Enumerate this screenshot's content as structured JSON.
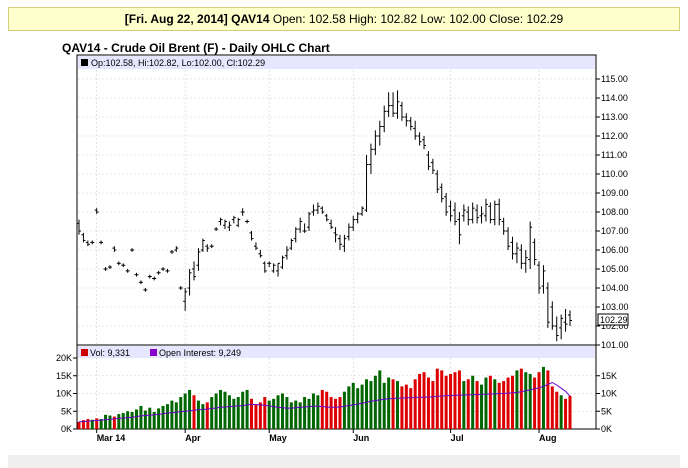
{
  "info_bar": {
    "date": "[Fri. Aug 22, 2014]",
    "symbol": "QAV14",
    "open_label": "Open:",
    "open": "102.58",
    "high_label": "High:",
    "high": "102.82",
    "low_label": "Low:",
    "low": "102.00",
    "close_label": "Close:",
    "close": "102.29"
  },
  "title": "QAV14 - Crude Oil Brent (F) - Daily OHLC Chart",
  "price_legend": "Op:102.58, Hi:102.82, Lo:102.00, Cl:102.29",
  "last_price_tag": "102.29",
  "volume_legend": {
    "vol": "Vol: 9,331",
    "oi": "Open Interest: 9,249"
  },
  "colors": {
    "up": "#006600",
    "down": "#dd0000",
    "oi_line": "#6600cc",
    "vol_swatch": "#cc0000",
    "oi_swatch": "#8800cc",
    "header_band": "#e6e6ff"
  },
  "chart_data": [
    {
      "type": "ohlc",
      "y_ticks": [
        "101.00",
        "102.00",
        "103.00",
        "104.00",
        "105.00",
        "106.00",
        "107.00",
        "108.00",
        "109.00",
        "110.00",
        "111.00",
        "112.00",
        "113.00",
        "114.00",
        "115.00"
      ],
      "ylim": [
        101,
        115
      ],
      "x_labels": [
        "Mar 14",
        "Apr",
        "May",
        "Jun",
        "Jul",
        "Aug"
      ],
      "bars": [
        {
          "o": 107.4,
          "h": 107.6,
          "l": 106.8,
          "c": 107.0
        },
        {
          "o": 106.8,
          "h": 106.9,
          "l": 106.4,
          "c": 106.5
        },
        {
          "o": 106.4,
          "h": 106.5,
          "l": 106.2,
          "c": 106.3
        },
        {
          "o": 106.4,
          "h": 106.5,
          "l": 106.3,
          "c": 106.4
        },
        {
          "o": 108.1,
          "h": 108.2,
          "l": 107.9,
          "c": 108.0
        },
        {
          "o": 106.4,
          "h": 106.5,
          "l": 106.3,
          "c": 106.4
        },
        {
          "o": 105.0,
          "h": 105.1,
          "l": 104.9,
          "c": 105.0
        },
        {
          "o": 105.1,
          "h": 105.2,
          "l": 105.0,
          "c": 105.1
        },
        {
          "o": 106.1,
          "h": 106.2,
          "l": 105.9,
          "c": 106.0
        },
        {
          "o": 105.3,
          "h": 105.4,
          "l": 105.2,
          "c": 105.3
        },
        {
          "o": 105.2,
          "h": 105.3,
          "l": 105.1,
          "c": 105.2
        },
        {
          "o": 104.9,
          "h": 105.0,
          "l": 104.8,
          "c": 104.9
        },
        {
          "o": 106.0,
          "h": 106.1,
          "l": 105.9,
          "c": 106.0
        },
        {
          "o": 104.7,
          "h": 104.8,
          "l": 104.6,
          "c": 104.7
        },
        {
          "o": 104.3,
          "h": 104.4,
          "l": 104.2,
          "c": 104.3
        },
        {
          "o": 103.9,
          "h": 104.0,
          "l": 103.8,
          "c": 103.9
        },
        {
          "o": 104.6,
          "h": 104.7,
          "l": 104.5,
          "c": 104.6
        },
        {
          "o": 104.5,
          "h": 104.6,
          "l": 104.4,
          "c": 104.5
        },
        {
          "o": 104.8,
          "h": 104.9,
          "l": 104.7,
          "c": 104.8
        },
        {
          "o": 105.0,
          "h": 105.1,
          "l": 104.9,
          "c": 105.0
        },
        {
          "o": 104.9,
          "h": 105.0,
          "l": 104.8,
          "c": 104.9
        },
        {
          "o": 105.9,
          "h": 106.0,
          "l": 105.8,
          "c": 105.9
        },
        {
          "o": 106.0,
          "h": 106.2,
          "l": 105.9,
          "c": 106.1
        },
        {
          "o": 104.0,
          "h": 104.1,
          "l": 103.9,
          "c": 104.0
        },
        {
          "o": 103.3,
          "h": 104.0,
          "l": 102.8,
          "c": 103.8
        },
        {
          "o": 104.0,
          "h": 105.0,
          "l": 103.6,
          "c": 104.8
        },
        {
          "o": 105.0,
          "h": 105.4,
          "l": 104.4,
          "c": 104.6
        },
        {
          "o": 105.2,
          "h": 106.1,
          "l": 104.9,
          "c": 105.9
        },
        {
          "o": 106.0,
          "h": 106.6,
          "l": 105.9,
          "c": 106.5
        },
        {
          "o": 106.2,
          "h": 106.3,
          "l": 105.9,
          "c": 106.1
        },
        {
          "o": 106.2,
          "h": 106.3,
          "l": 106.1,
          "c": 106.2
        },
        {
          "o": 107.1,
          "h": 107.2,
          "l": 107.0,
          "c": 107.1
        },
        {
          "o": 107.5,
          "h": 107.7,
          "l": 107.3,
          "c": 107.6
        },
        {
          "o": 107.3,
          "h": 107.6,
          "l": 107.1,
          "c": 107.5
        },
        {
          "o": 107.2,
          "h": 107.5,
          "l": 107.0,
          "c": 107.3
        },
        {
          "o": 107.6,
          "h": 107.8,
          "l": 107.4,
          "c": 107.7
        },
        {
          "o": 107.3,
          "h": 107.7,
          "l": 107.2,
          "c": 107.6
        },
        {
          "o": 108.0,
          "h": 108.2,
          "l": 107.8,
          "c": 108.0
        },
        {
          "o": 107.5,
          "h": 107.6,
          "l": 107.4,
          "c": 107.5
        },
        {
          "o": 106.9,
          "h": 107.0,
          "l": 106.5,
          "c": 106.6
        },
        {
          "o": 106.2,
          "h": 106.4,
          "l": 106.0,
          "c": 106.1
        },
        {
          "o": 105.8,
          "h": 106.0,
          "l": 105.6,
          "c": 105.7
        },
        {
          "o": 105.3,
          "h": 105.4,
          "l": 104.8,
          "c": 104.9
        },
        {
          "o": 105.3,
          "h": 105.4,
          "l": 105.1,
          "c": 105.3
        },
        {
          "o": 104.9,
          "h": 105.3,
          "l": 104.8,
          "c": 105.2
        },
        {
          "o": 104.9,
          "h": 105.3,
          "l": 104.6,
          "c": 105.3
        },
        {
          "o": 105.1,
          "h": 105.7,
          "l": 105.0,
          "c": 105.6
        },
        {
          "o": 105.7,
          "h": 106.2,
          "l": 105.5,
          "c": 106.0
        },
        {
          "o": 106.1,
          "h": 106.6,
          "l": 106.0,
          "c": 106.5
        },
        {
          "o": 106.6,
          "h": 107.2,
          "l": 106.4,
          "c": 107.1
        },
        {
          "o": 107.1,
          "h": 107.7,
          "l": 106.9,
          "c": 107.5
        },
        {
          "o": 107.0,
          "h": 107.4,
          "l": 106.9,
          "c": 107.0
        },
        {
          "o": 107.2,
          "h": 108.0,
          "l": 107.0,
          "c": 107.9
        },
        {
          "o": 108.0,
          "h": 108.4,
          "l": 107.8,
          "c": 108.1
        },
        {
          "o": 108.1,
          "h": 108.5,
          "l": 107.9,
          "c": 108.3
        },
        {
          "o": 108.2,
          "h": 108.3,
          "l": 107.9,
          "c": 108.0
        },
        {
          "o": 107.8,
          "h": 107.9,
          "l": 107.5,
          "c": 107.6
        },
        {
          "o": 107.4,
          "h": 107.6,
          "l": 107.1,
          "c": 107.2
        },
        {
          "o": 106.9,
          "h": 107.2,
          "l": 106.4,
          "c": 106.8
        },
        {
          "o": 106.6,
          "h": 106.8,
          "l": 106.0,
          "c": 106.3
        },
        {
          "o": 106.2,
          "h": 106.8,
          "l": 105.9,
          "c": 106.6
        },
        {
          "o": 106.7,
          "h": 107.4,
          "l": 106.5,
          "c": 107.2
        },
        {
          "o": 107.2,
          "h": 107.8,
          "l": 107.0,
          "c": 107.6
        },
        {
          "o": 107.6,
          "h": 108.0,
          "l": 107.4,
          "c": 107.9
        },
        {
          "o": 107.9,
          "h": 108.3,
          "l": 107.8,
          "c": 108.2
        },
        {
          "o": 108.1,
          "h": 111.0,
          "l": 108.0,
          "c": 110.5
        },
        {
          "o": 110.5,
          "h": 111.6,
          "l": 110.0,
          "c": 111.3
        },
        {
          "o": 111.3,
          "h": 112.3,
          "l": 111.0,
          "c": 112.0
        },
        {
          "o": 112.0,
          "h": 112.8,
          "l": 111.5,
          "c": 112.5
        },
        {
          "o": 112.5,
          "h": 113.6,
          "l": 112.2,
          "c": 113.3
        },
        {
          "o": 113.3,
          "h": 114.3,
          "l": 113.0,
          "c": 113.6
        },
        {
          "o": 113.6,
          "h": 114.3,
          "l": 113.0,
          "c": 113.2
        },
        {
          "o": 113.2,
          "h": 114.4,
          "l": 112.9,
          "c": 113.8
        },
        {
          "o": 113.6,
          "h": 113.8,
          "l": 112.8,
          "c": 113.0
        },
        {
          "o": 113.0,
          "h": 113.2,
          "l": 112.5,
          "c": 112.8
        },
        {
          "o": 112.8,
          "h": 113.0,
          "l": 112.3,
          "c": 112.5
        },
        {
          "o": 112.4,
          "h": 112.8,
          "l": 111.8,
          "c": 112.0
        },
        {
          "o": 112.0,
          "h": 112.2,
          "l": 111.5,
          "c": 111.7
        },
        {
          "o": 111.8,
          "h": 112.0,
          "l": 111.3,
          "c": 111.5
        },
        {
          "o": 111.0,
          "h": 111.2,
          "l": 110.2,
          "c": 110.4
        },
        {
          "o": 110.6,
          "h": 110.8,
          "l": 110.0,
          "c": 110.2
        },
        {
          "o": 110.0,
          "h": 110.2,
          "l": 109.0,
          "c": 109.2
        },
        {
          "o": 109.3,
          "h": 109.5,
          "l": 108.5,
          "c": 108.7
        },
        {
          "o": 108.8,
          "h": 109.0,
          "l": 107.8,
          "c": 108.0
        },
        {
          "o": 108.3,
          "h": 108.6,
          "l": 107.5,
          "c": 107.8
        },
        {
          "o": 108.1,
          "h": 108.5,
          "l": 107.3,
          "c": 107.5
        },
        {
          "o": 107.6,
          "h": 108.0,
          "l": 106.3,
          "c": 106.8
        },
        {
          "o": 107.8,
          "h": 108.4,
          "l": 107.5,
          "c": 108.1
        },
        {
          "o": 108.0,
          "h": 108.3,
          "l": 107.3,
          "c": 107.6
        },
        {
          "o": 107.6,
          "h": 108.5,
          "l": 107.4,
          "c": 108.2
        },
        {
          "o": 108.1,
          "h": 108.4,
          "l": 107.4,
          "c": 107.7
        },
        {
          "o": 107.8,
          "h": 108.3,
          "l": 107.4,
          "c": 107.9
        },
        {
          "o": 107.8,
          "h": 108.7,
          "l": 107.5,
          "c": 108.4
        },
        {
          "o": 108.3,
          "h": 108.5,
          "l": 107.4,
          "c": 107.6
        },
        {
          "o": 107.6,
          "h": 108.6,
          "l": 107.3,
          "c": 108.4
        },
        {
          "o": 108.4,
          "h": 108.7,
          "l": 107.3,
          "c": 107.6
        },
        {
          "o": 107.5,
          "h": 107.7,
          "l": 106.8,
          "c": 107.0
        },
        {
          "o": 107.0,
          "h": 107.2,
          "l": 106.0,
          "c": 106.2
        },
        {
          "o": 106.4,
          "h": 106.7,
          "l": 105.5,
          "c": 105.8
        },
        {
          "o": 105.8,
          "h": 106.4,
          "l": 105.3,
          "c": 106.1
        },
        {
          "o": 106.0,
          "h": 106.3,
          "l": 105.0,
          "c": 105.3
        },
        {
          "o": 105.3,
          "h": 106.0,
          "l": 104.8,
          "c": 105.6
        },
        {
          "o": 105.5,
          "h": 107.5,
          "l": 105.0,
          "c": 107.2
        },
        {
          "o": 106.4,
          "h": 106.6,
          "l": 105.2,
          "c": 105.5
        },
        {
          "o": 105.2,
          "h": 105.4,
          "l": 103.7,
          "c": 104.0
        },
        {
          "o": 104.1,
          "h": 105.2,
          "l": 103.7,
          "c": 104.9
        },
        {
          "o": 104.0,
          "h": 104.3,
          "l": 101.9,
          "c": 102.2
        },
        {
          "o": 103.0,
          "h": 103.3,
          "l": 101.8,
          "c": 102.0
        },
        {
          "o": 102.0,
          "h": 102.5,
          "l": 101.2,
          "c": 101.5
        },
        {
          "o": 101.9,
          "h": 102.6,
          "l": 101.3,
          "c": 102.4
        },
        {
          "o": 102.2,
          "h": 102.9,
          "l": 101.7,
          "c": 102.1
        },
        {
          "o": 102.58,
          "h": 102.82,
          "l": 102.0,
          "c": 102.29
        }
      ]
    },
    {
      "type": "bar",
      "left_ticks": [
        "0K",
        "5K",
        "10K",
        "15K",
        "20K"
      ],
      "right_ticks": [
        "0K",
        "5K",
        "10K",
        "15K"
      ],
      "ylim": [
        0,
        20000
      ],
      "volume": [
        2000,
        2500,
        2800,
        2600,
        3000,
        2800,
        4000,
        3800,
        3500,
        4200,
        4500,
        5000,
        4800,
        5500,
        6500,
        5200,
        6000,
        4800,
        5800,
        6500,
        7000,
        8000,
        7500,
        9000,
        10000,
        11000,
        9500,
        8000,
        7000,
        7500,
        9000,
        10000,
        11000,
        10500,
        9500,
        8500,
        9000,
        10500,
        11000,
        8500,
        7000,
        7500,
        9000,
        8000,
        8500,
        9500,
        10000,
        9000,
        7500,
        8000,
        7500,
        9000,
        8500,
        10000,
        9500,
        11000,
        10500,
        9000,
        8500,
        9000,
        10500,
        12000,
        13000,
        11500,
        12500,
        14000,
        13500,
        15000,
        16500,
        13000,
        14500,
        14000,
        13500,
        12000,
        12500,
        11500,
        14000,
        15500,
        16000,
        14500,
        13500,
        17000,
        16500,
        15000,
        15500,
        16000,
        16500,
        13500,
        14000,
        15000,
        13500,
        12500,
        14500,
        15000,
        14000,
        13000,
        13500,
        14500,
        15000,
        16500,
        17000,
        16000,
        15500,
        14500,
        16000,
        17500,
        16500,
        12000,
        10500,
        9500,
        8500,
        9331
      ],
      "open_interest": [
        2000,
        2100,
        2200,
        2300,
        2400,
        2500,
        2600,
        2700,
        2900,
        3000,
        3100,
        3200,
        3300,
        3500,
        3700,
        3800,
        3900,
        4000,
        4100,
        4300,
        4500,
        4600,
        4700,
        4900,
        5000,
        5100,
        5300,
        5400,
        5500,
        5600,
        5800,
        5900,
        6100,
        6200,
        6300,
        6400,
        6500,
        6600,
        6800,
        6900,
        6900,
        6800,
        6700,
        6500,
        6300,
        6100,
        6000,
        5900,
        5900,
        6000,
        6100,
        6200,
        6300,
        6400,
        6400,
        6300,
        6200,
        6100,
        6100,
        6200,
        6400,
        6600,
        6800,
        7000,
        7300,
        7500,
        7800,
        8000,
        8200,
        8400,
        8500,
        8600,
        8700,
        8700,
        8800,
        8800,
        8900,
        8900,
        9000,
        9000,
        9100,
        9200,
        9300,
        9400,
        9400,
        9500,
        9500,
        9600,
        9600,
        9700,
        9700,
        9800,
        9800,
        9900,
        9900,
        10000,
        10000,
        10100,
        10200,
        10300,
        10500,
        10800,
        11000,
        11300,
        11600,
        12000,
        12600,
        13100,
        12400,
        11500,
        10600,
        9249
      ]
    }
  ]
}
